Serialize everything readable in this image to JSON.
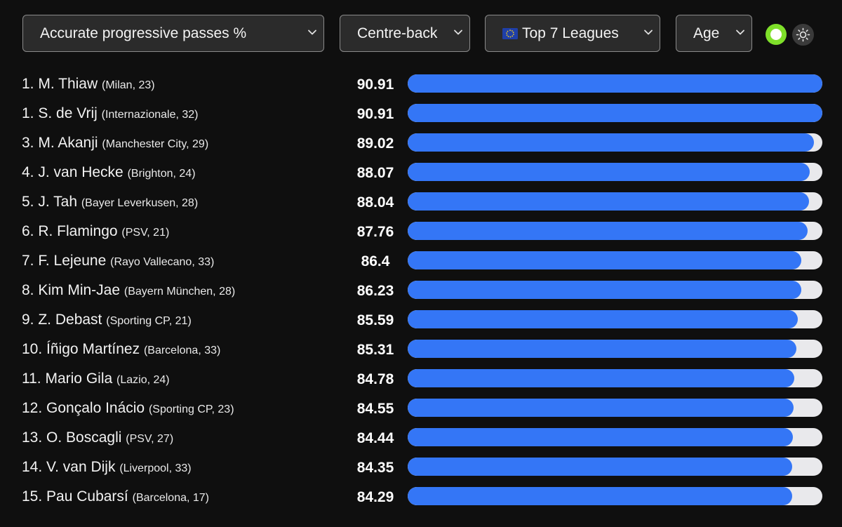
{
  "filters": {
    "metric": "Accurate progressive passes %",
    "position": "Centre-back",
    "league_flag_icon": "eu-flag-icon",
    "league": "Top 7 Leagues",
    "sort": "Age"
  },
  "controls": {
    "toggle_icon": "toggle-on-icon",
    "toggle_color": "#7fe02a",
    "theme_icon": "sun-icon"
  },
  "colors": {
    "bar": "#3476f6",
    "track": "#e9e9ec",
    "background": "#0f0f0f"
  },
  "scale_max": 90.91,
  "players": [
    {
      "name": "1. M. Thiaw",
      "meta": "(Milan, 23)",
      "value": "90.91",
      "fraction": 1.0
    },
    {
      "name": "1. S. de Vrij",
      "meta": "(Internazionale, 32)",
      "value": "90.91",
      "fraction": 1.0
    },
    {
      "name": "3. M. Akanji",
      "meta": "(Manchester City, 29)",
      "value": "89.02",
      "fraction": 0.979
    },
    {
      "name": "4. J. van Hecke",
      "meta": "(Brighton, 24)",
      "value": "88.07",
      "fraction": 0.969
    },
    {
      "name": "5. J. Tah",
      "meta": "(Bayer Leverkusen, 28)",
      "value": "88.04",
      "fraction": 0.968
    },
    {
      "name": "6. R. Flamingo",
      "meta": "(PSV, 21)",
      "value": "87.76",
      "fraction": 0.965
    },
    {
      "name": "7. F. Lejeune",
      "meta": "(Rayo Vallecano, 33)",
      "value": "86.4",
      "fraction": 0.95
    },
    {
      "name": "8. Kim Min-Jae",
      "meta": "(Bayern München, 28)",
      "value": "86.23",
      "fraction": 0.949
    },
    {
      "name": "9. Z. Debast",
      "meta": "(Sporting CP, 21)",
      "value": "85.59",
      "fraction": 0.941
    },
    {
      "name": "10. Íñigo Martínez",
      "meta": "(Barcelona, 33)",
      "value": "85.31",
      "fraction": 0.938
    },
    {
      "name": "11. Mario Gila",
      "meta": "(Lazio, 24)",
      "value": "84.78",
      "fraction": 0.933
    },
    {
      "name": "12. Gonçalo Inácio",
      "meta": "(Sporting CP, 23)",
      "value": "84.55",
      "fraction": 0.93
    },
    {
      "name": "13. O. Boscagli",
      "meta": "(PSV, 27)",
      "value": "84.44",
      "fraction": 0.929
    },
    {
      "name": "14. V. van Dijk",
      "meta": "(Liverpool, 33)",
      "value": "84.35",
      "fraction": 0.928
    },
    {
      "name": "15. Pau Cubarsí",
      "meta": "(Barcelona, 17)",
      "value": "84.29",
      "fraction": 0.927
    }
  ]
}
